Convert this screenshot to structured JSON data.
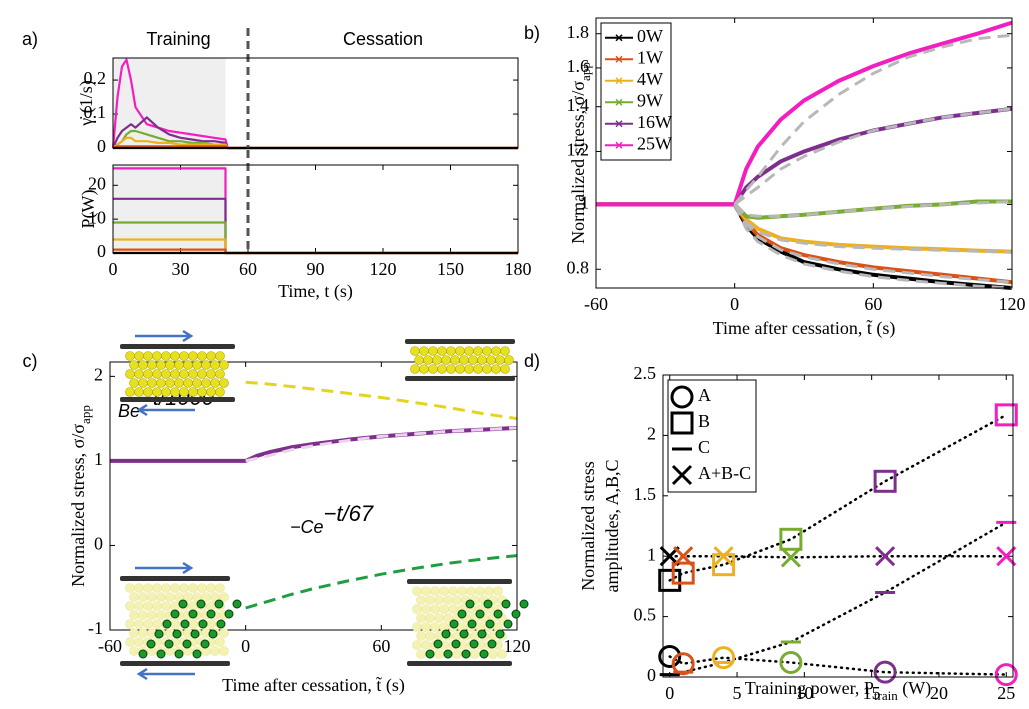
{
  "chart_data": [
    {
      "type": "line",
      "panel": "a)",
      "ylabel": "γ̇ (1/s)",
      "annotations": [
        "Training",
        "Cessation"
      ],
      "shaded_xlim": [
        0,
        50
      ],
      "vline": 60,
      "xlim": [
        0,
        180
      ],
      "ylim": [
        0,
        0.265
      ],
      "yticks": [
        0,
        0.1,
        0.2
      ],
      "x": [
        0,
        2,
        4,
        6,
        8,
        10,
        15,
        20,
        25,
        30,
        35,
        40,
        45,
        50,
        51,
        60,
        180
      ],
      "series": [
        {
          "color": "#f21ec0",
          "values": [
            0,
            0.15,
            0.24,
            0.26,
            0.2,
            0.12,
            0.07,
            0.06,
            0.05,
            0.045,
            0.04,
            0.035,
            0.03,
            0.025,
            0,
            0,
            0
          ]
        },
        {
          "color": "#7e2f8e",
          "values": [
            0,
            0.03,
            0.05,
            0.06,
            0.07,
            0.06,
            0.09,
            0.06,
            0.04,
            0.03,
            0.025,
            0.02,
            0.02,
            0.015,
            0,
            0,
            0
          ]
        },
        {
          "color": "#77ac30",
          "values": [
            0,
            0.01,
            0.02,
            0.04,
            0.05,
            0.05,
            0.04,
            0.03,
            0.02,
            0.02,
            0.015,
            0.015,
            0.01,
            0.01,
            0,
            0,
            0
          ]
        },
        {
          "color": "#edb120",
          "values": [
            0,
            0.01,
            0.02,
            0.03,
            0.03,
            0.02,
            0.02,
            0.015,
            0.015,
            0.01,
            0.01,
            0.01,
            0.01,
            0.01,
            0,
            0,
            0
          ]
        },
        {
          "color": "#d95319",
          "values": [
            0,
            0.005,
            0.005,
            0.005,
            0.005,
            0.005,
            0.005,
            0.005,
            0.005,
            0.005,
            0.005,
            0.005,
            0.005,
            0.005,
            0,
            0,
            0
          ]
        },
        {
          "color": "#000000",
          "values": [
            0,
            0,
            0,
            0,
            0,
            0,
            0,
            0,
            0,
            0,
            0,
            0,
            0,
            0,
            0,
            0,
            0
          ]
        }
      ]
    },
    {
      "type": "line",
      "ylabel": "P(W)",
      "xlabel": "Time, t (s)",
      "shaded_xlim": [
        0,
        50
      ],
      "vline": 60,
      "xlim": [
        0,
        180
      ],
      "ylim": [
        0,
        26
      ],
      "yticks": [
        0,
        10,
        20
      ],
      "xticks": [
        0,
        30,
        60,
        90,
        120,
        150,
        180
      ],
      "x": [
        0,
        50,
        50,
        180
      ],
      "series": [
        {
          "color": "#f21ec0",
          "values": [
            25,
            25,
            0,
            0
          ]
        },
        {
          "color": "#7e2f8e",
          "values": [
            16,
            16,
            0,
            0
          ]
        },
        {
          "color": "#77ac30",
          "values": [
            9,
            9,
            0,
            0
          ]
        },
        {
          "color": "#edb120",
          "values": [
            4,
            4,
            0,
            0
          ]
        },
        {
          "color": "#d95319",
          "values": [
            1,
            1,
            0,
            0
          ]
        },
        {
          "color": "#000000",
          "values": [
            0,
            0,
            0,
            0
          ]
        }
      ]
    },
    {
      "type": "line",
      "panel": "b)",
      "ylabel": {
        "text": "Normalized stress, σ/σ",
        "sub": "app"
      },
      "xlabel": "Time after cessation, t̃ (s)",
      "log_y": true,
      "legend": "upper left",
      "xlim": [
        -60,
        120
      ],
      "ylim": [
        0.75,
        1.9
      ],
      "xticks": [
        -60,
        0,
        60,
        120
      ],
      "yticks": [
        0.8,
        1,
        1.2,
        1.4,
        1.6,
        1.8
      ],
      "x": [
        -60,
        -45,
        -30,
        -15,
        0,
        5,
        10,
        20,
        30,
        45,
        60,
        75,
        90,
        105,
        120
      ],
      "series": [
        {
          "name": "0W",
          "color": "#000000",
          "values": [
            1,
            1,
            1,
            1,
            1,
            0.93,
            0.89,
            0.85,
            0.82,
            0.8,
            0.785,
            0.775,
            0.765,
            0.757,
            0.75
          ]
        },
        {
          "name": "1W",
          "color": "#d95319",
          "values": [
            1,
            1,
            1,
            1,
            1,
            0.94,
            0.9,
            0.86,
            0.84,
            0.82,
            0.805,
            0.795,
            0.785,
            0.775,
            0.765
          ]
        },
        {
          "name": "4W",
          "color": "#edb120",
          "values": [
            1,
            1,
            1,
            1,
            1,
            0.95,
            0.92,
            0.89,
            0.88,
            0.87,
            0.865,
            0.86,
            0.857,
            0.853,
            0.85
          ]
        },
        {
          "name": "9W",
          "color": "#77ac30",
          "values": [
            1,
            1,
            1,
            1,
            1,
            0.96,
            0.955,
            0.96,
            0.965,
            0.975,
            0.985,
            0.995,
            1.0,
            1.01,
            1.01
          ]
        },
        {
          "name": "16W",
          "color": "#7e2f8e",
          "values": [
            1,
            1,
            1,
            1,
            1,
            1.06,
            1.1,
            1.16,
            1.2,
            1.25,
            1.29,
            1.32,
            1.35,
            1.37,
            1.39
          ]
        },
        {
          "name": "25W",
          "color": "#f21ec0",
          "values": [
            1,
            1,
            1,
            1,
            1,
            1.13,
            1.22,
            1.34,
            1.43,
            1.53,
            1.61,
            1.68,
            1.74,
            1.8,
            1.87
          ]
        },
        {
          "color": "#b8b8b8",
          "dashed": true,
          "values": [
            null,
            null,
            null,
            null,
            1,
            0.92,
            0.88,
            0.84,
            0.815,
            0.795,
            0.78,
            0.77,
            0.762,
            0.755,
            0.75
          ]
        },
        {
          "color": "#b8b8b8",
          "dashed": true,
          "values": [
            null,
            null,
            null,
            null,
            1,
            0.935,
            0.895,
            0.855,
            0.835,
            0.815,
            0.8,
            0.79,
            0.78,
            0.772,
            0.765
          ]
        },
        {
          "color": "#b8b8b8",
          "dashed": true,
          "values": [
            null,
            null,
            null,
            null,
            1,
            0.94,
            0.91,
            0.885,
            0.875,
            0.865,
            0.86,
            0.857,
            0.854,
            0.851,
            0.848
          ]
        },
        {
          "color": "#b8b8b8",
          "dashed": true,
          "values": [
            null,
            null,
            null,
            null,
            1,
            0.965,
            0.96,
            0.96,
            0.965,
            0.975,
            0.985,
            0.993,
            1.0,
            1.005,
            1.01
          ]
        },
        {
          "color": "#b8b8b8",
          "dashed": true,
          "values": [
            null,
            null,
            null,
            null,
            1,
            1.03,
            1.06,
            1.13,
            1.18,
            1.24,
            1.29,
            1.32,
            1.35,
            1.37,
            1.39
          ]
        },
        {
          "color": "#b8b8b8",
          "dashed": true,
          "values": [
            null,
            null,
            null,
            null,
            1,
            1.05,
            1.1,
            1.22,
            1.33,
            1.46,
            1.57,
            1.66,
            1.72,
            1.77,
            1.79
          ]
        }
      ]
    },
    {
      "type": "line",
      "panel": "c)",
      "ylabel": {
        "text": "Normalized stress, σ/σ",
        "sub": "app"
      },
      "xlabel": "Time after cessation, t̃ (s)",
      "xlim": [
        -60,
        120
      ],
      "ylim": [
        -1,
        2.17
      ],
      "xticks": [
        -60,
        0,
        60,
        120
      ],
      "yticks": [
        -1,
        0,
        1,
        2
      ],
      "annotations": [
        {
          "text": "Be",
          "sup": "−t/1000",
          "color": "#e3d41f"
        },
        {
          "text": "−Ce",
          "sup": "−t/67",
          "color": "#1f9e3f"
        }
      ],
      "x": [
        -60,
        -45,
        -30,
        -15,
        0,
        5,
        10,
        20,
        30,
        45,
        60,
        75,
        90,
        105,
        120
      ],
      "series": [
        {
          "color": "#7e2f8e",
          "values": [
            1,
            1,
            1,
            1,
            1,
            1.06,
            1.1,
            1.16,
            1.2,
            1.25,
            1.29,
            1.32,
            1.35,
            1.37,
            1.39
          ]
        },
        {
          "color": "#ecd2ec",
          "dashed": true,
          "values": [
            null,
            null,
            null,
            null,
            1,
            1.03,
            1.06,
            1.13,
            1.18,
            1.24,
            1.29,
            1.32,
            1.35,
            1.37,
            1.39
          ]
        },
        {
          "color": "#e3d41f",
          "dashed": true,
          "values": [
            null,
            null,
            null,
            null,
            1.93,
            1.92,
            1.91,
            1.88,
            1.85,
            1.8,
            1.75,
            1.69,
            1.63,
            1.56,
            1.5
          ]
        },
        {
          "color": "#1f9e3f",
          "dashed": true,
          "values": [
            null,
            null,
            null,
            null,
            -0.74,
            -0.7,
            -0.66,
            -0.58,
            -0.51,
            -0.42,
            -0.34,
            -0.27,
            -0.21,
            -0.16,
            -0.12
          ]
        }
      ]
    },
    {
      "type": "scatter",
      "panel": "d)",
      "ylabel": [
        "Normalized stress",
        "amplitudes, A,B,C"
      ],
      "xlabel": {
        "text": "Training power, P",
        "sub": "train",
        "after": " (W)"
      },
      "legend": "upper left",
      "xlim": [
        -0.5,
        25.5
      ],
      "ylim": [
        0,
        2.5
      ],
      "xticks": [
        0,
        5,
        10,
        15,
        20,
        25
      ],
      "yticks": [
        0,
        0.5,
        1,
        1.5,
        2,
        2.5
      ],
      "x": [
        0,
        1,
        4,
        9,
        16,
        25
      ],
      "point_colors": [
        "#000000",
        "#d95319",
        "#edb120",
        "#77ac30",
        "#7e2f8e",
        "#f21ec0"
      ],
      "series": [
        {
          "name": "A",
          "marker": "circle",
          "values": [
            0.17,
            0.11,
            0.16,
            0.12,
            0.04,
            0.02
          ]
        },
        {
          "name": "B",
          "marker": "square",
          "values": [
            0.8,
            0.86,
            0.93,
            1.14,
            1.62,
            2.17
          ]
        },
        {
          "name": "C",
          "marker": "dash",
          "values": [
            0.02,
            0.04,
            0.12,
            0.29,
            0.7,
            1.28
          ]
        },
        {
          "name": "A+B-C",
          "marker": "x",
          "values": [
            1.0,
            1.0,
            1.0,
            0.99,
            1.0,
            1.0
          ]
        }
      ]
    }
  ]
}
